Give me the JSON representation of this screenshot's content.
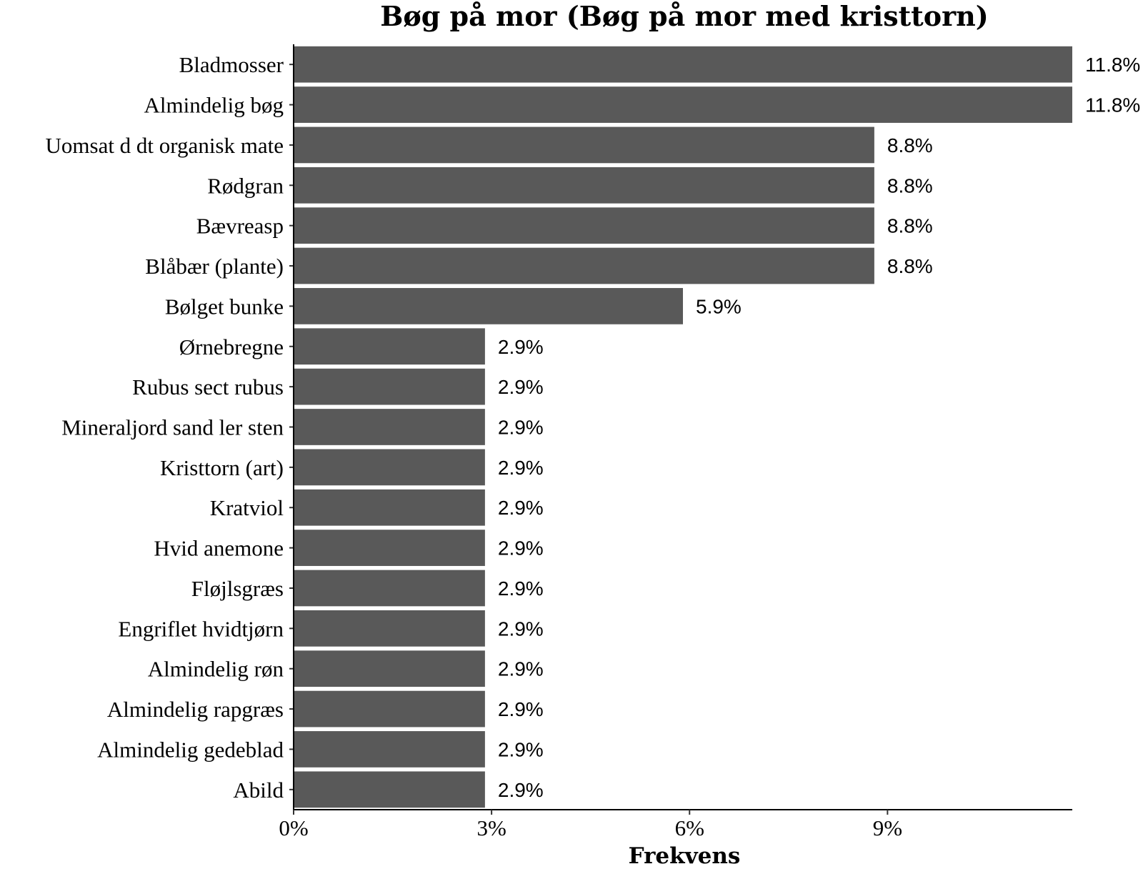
{
  "chart_data": {
    "type": "bar",
    "orientation": "horizontal",
    "title": "Bøg på mor (Bøg på mor med kristtorn)",
    "xlabel": "Frekvens",
    "ylabel": "",
    "xlim": [
      0,
      11.8
    ],
    "xticks": [
      0,
      3,
      6,
      9
    ],
    "xtick_labels": [
      "0%",
      "3%",
      "6%",
      "9%"
    ],
    "grid": false,
    "legend": "none",
    "bar_color": "#595959",
    "categories": [
      "Bladmosser",
      "Almindelig bøg",
      "Uomsat d dt organisk mate",
      "Rødgran",
      "Bævreasp",
      "Blåbær (plante)",
      "Bølget bunke",
      "Ørnebregne",
      "Rubus sect rubus",
      "Mineraljord sand ler sten",
      "Kristtorn (art)",
      "Kratviol",
      "Hvid anemone",
      "Fløjlsgræs",
      "Engriflet hvidtjørn",
      "Almindelig røn",
      "Almindelig rapgræs",
      "Almindelig gedeblad",
      "Abild"
    ],
    "values": [
      11.8,
      11.8,
      8.8,
      8.8,
      8.8,
      8.8,
      5.9,
      2.9,
      2.9,
      2.9,
      2.9,
      2.9,
      2.9,
      2.9,
      2.9,
      2.9,
      2.9,
      2.9,
      2.9
    ],
    "value_labels": [
      "11.8%",
      "11.8%",
      "8.8%",
      "8.8%",
      "8.8%",
      "8.8%",
      "5.9%",
      "2.9%",
      "2.9%",
      "2.9%",
      "2.9%",
      "2.9%",
      "2.9%",
      "2.9%",
      "2.9%",
      "2.9%",
      "2.9%",
      "2.9%",
      "2.9%"
    ]
  }
}
